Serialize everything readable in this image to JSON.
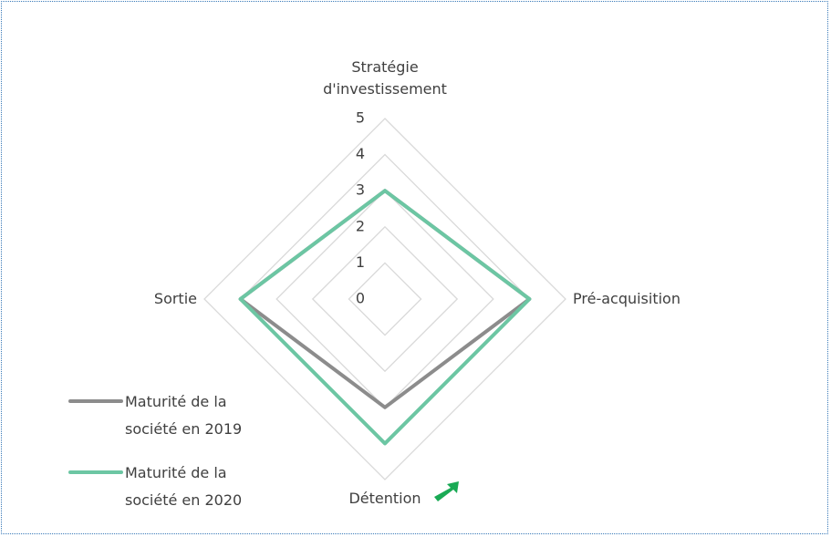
{
  "chart_data": {
    "type": "radar",
    "categories": [
      "Stratégie d'investissement",
      "Pré-acquisition",
      "Détention",
      "Sortie"
    ],
    "series": [
      {
        "name": "Maturité de la société en 2019",
        "color": "#8c8c8c",
        "values": [
          3,
          4,
          3,
          4
        ]
      },
      {
        "name": "Maturité de la société en 2020",
        "color": "#6cc6a3",
        "values": [
          3,
          4,
          4,
          4
        ]
      }
    ],
    "rlim": [
      0,
      5
    ],
    "rticks": [
      0,
      1,
      2,
      3,
      4,
      5
    ],
    "grid": true,
    "legend": "lower left"
  }
}
